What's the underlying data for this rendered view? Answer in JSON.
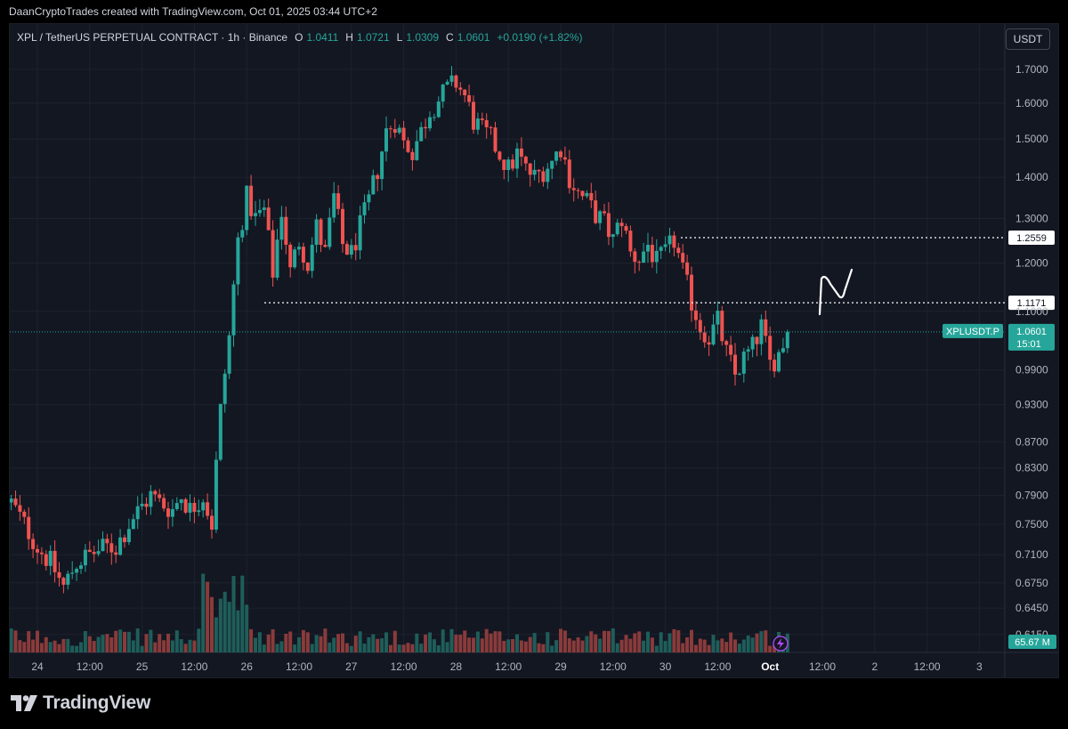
{
  "attribution": "DaanCryptoTrades created with TradingView.com, Oct 01, 2025 03:44 UTC+2",
  "header": {
    "symbol": "XPL / TetherUS PERPETUAL CONTRACT · 1h · Binance",
    "o_label": "O",
    "o_value": "1.0411",
    "h_label": "H",
    "h_value": "1.0721",
    "l_label": "L",
    "l_value": "1.0309",
    "c_label": "C",
    "c_value": "1.0601",
    "change": "+0.0190 (+1.82%)",
    "currency": "USDT"
  },
  "colors": {
    "up": "#26a69a",
    "down": "#ef5350",
    "background": "#131722",
    "grid": "#1e222d",
    "axis_text": "#b2b5be",
    "volume_up": "#1f5e5a",
    "volume_down": "#8a3b3b"
  },
  "chart_data": {
    "type": "candlestick",
    "symbol": "XPLUSDT.P",
    "interval": "1h",
    "y_scale": "log",
    "ylim": [
      0.61,
      1.73
    ],
    "y_ticks": [
      "1.7000",
      "1.6000",
      "1.5000",
      "1.4000",
      "1.3000",
      "1.2000",
      "1.1000",
      "0.9900",
      "0.9300",
      "0.8700",
      "0.8300",
      "0.7900",
      "0.7500",
      "0.7100",
      "0.6750",
      "0.6450",
      "0.6150"
    ],
    "x_labels": [
      "24",
      "12:00",
      "25",
      "12:00",
      "26",
      "12:00",
      "27",
      "12:00",
      "28",
      "12:00",
      "29",
      "12:00",
      "30",
      "12:00",
      "Oct",
      "12:00",
      "2",
      "12:00",
      "3"
    ],
    "x_label_hours": [
      0,
      12,
      24,
      36,
      48,
      60,
      72,
      84,
      96,
      108,
      120,
      132,
      144,
      156,
      168,
      180,
      192,
      204,
      216
    ],
    "last_price": {
      "label": "XPLUSDT.P",
      "price": "1.0601",
      "countdown": "15:01",
      "value": 1.0601
    },
    "volume_label": "65.67 M",
    "price_lines": [
      {
        "label": "1.2559",
        "value": 1.2559
      },
      {
        "label": "1.1171",
        "value": 1.1171
      }
    ],
    "anchors": [
      {
        "t": -6,
        "p": 0.78
      },
      {
        "t": 0,
        "p": 0.72
      },
      {
        "t": 3,
        "p": 0.7
      },
      {
        "t": 6,
        "p": 0.67
      },
      {
        "t": 9,
        "p": 0.7
      },
      {
        "t": 12,
        "p": 0.71
      },
      {
        "t": 16,
        "p": 0.72
      },
      {
        "t": 18,
        "p": 0.72
      },
      {
        "t": 22,
        "p": 0.76
      },
      {
        "t": 26,
        "p": 0.79
      },
      {
        "t": 28,
        "p": 0.78
      },
      {
        "t": 31,
        "p": 0.77
      },
      {
        "t": 33,
        "p": 0.79
      },
      {
        "t": 35,
        "p": 0.77
      },
      {
        "t": 38,
        "p": 0.79
      },
      {
        "t": 40,
        "p": 0.75
      },
      {
        "t": 42,
        "p": 0.92
      },
      {
        "t": 44,
        "p": 1.05
      },
      {
        "t": 46,
        "p": 1.25
      },
      {
        "t": 48,
        "p": 1.35
      },
      {
        "t": 50,
        "p": 1.3
      },
      {
        "t": 52,
        "p": 1.32
      },
      {
        "t": 54,
        "p": 1.18
      },
      {
        "t": 56,
        "p": 1.32
      },
      {
        "t": 58,
        "p": 1.18
      },
      {
        "t": 60,
        "p": 1.25
      },
      {
        "t": 62,
        "p": 1.2
      },
      {
        "t": 64,
        "p": 1.28
      },
      {
        "t": 66,
        "p": 1.22
      },
      {
        "t": 68,
        "p": 1.35
      },
      {
        "t": 70,
        "p": 1.24
      },
      {
        "t": 72,
        "p": 1.22
      },
      {
        "t": 74,
        "p": 1.28
      },
      {
        "t": 76,
        "p": 1.34
      },
      {
        "t": 78,
        "p": 1.42
      },
      {
        "t": 80,
        "p": 1.52
      },
      {
        "t": 82,
        "p": 1.55
      },
      {
        "t": 84,
        "p": 1.49
      },
      {
        "t": 86,
        "p": 1.47
      },
      {
        "t": 88,
        "p": 1.52
      },
      {
        "t": 90,
        "p": 1.58
      },
      {
        "t": 92,
        "p": 1.61
      },
      {
        "t": 94,
        "p": 1.64
      },
      {
        "t": 96,
        "p": 1.66
      },
      {
        "t": 98,
        "p": 1.62
      },
      {
        "t": 100,
        "p": 1.55
      },
      {
        "t": 102,
        "p": 1.52
      },
      {
        "t": 104,
        "p": 1.5
      },
      {
        "t": 106,
        "p": 1.46
      },
      {
        "t": 108,
        "p": 1.42
      },
      {
        "t": 110,
        "p": 1.46
      },
      {
        "t": 112,
        "p": 1.42
      },
      {
        "t": 114,
        "p": 1.4
      },
      {
        "t": 116,
        "p": 1.42
      },
      {
        "t": 118,
        "p": 1.44
      },
      {
        "t": 120,
        "p": 1.48
      },
      {
        "t": 122,
        "p": 1.4
      },
      {
        "t": 124,
        "p": 1.36
      },
      {
        "t": 126,
        "p": 1.34
      },
      {
        "t": 128,
        "p": 1.31
      },
      {
        "t": 130,
        "p": 1.29
      },
      {
        "t": 132,
        "p": 1.25
      },
      {
        "t": 134,
        "p": 1.3
      },
      {
        "t": 136,
        "p": 1.22
      },
      {
        "t": 138,
        "p": 1.21
      },
      {
        "t": 140,
        "p": 1.24
      },
      {
        "t": 142,
        "p": 1.2
      },
      {
        "t": 144,
        "p": 1.22
      },
      {
        "t": 146,
        "p": 1.25
      },
      {
        "t": 148,
        "p": 1.18
      },
      {
        "t": 150,
        "p": 1.12
      },
      {
        "t": 152,
        "p": 1.07
      },
      {
        "t": 154,
        "p": 1.05
      },
      {
        "t": 156,
        "p": 1.08
      },
      {
        "t": 158,
        "p": 1.02
      },
      {
        "t": 160,
        "p": 0.98
      },
      {
        "t": 162,
        "p": 1.01
      },
      {
        "t": 164,
        "p": 1.03
      },
      {
        "t": 166,
        "p": 1.07
      },
      {
        "t": 168,
        "p": 1.0
      },
      {
        "t": 170,
        "p": 1.02
      },
      {
        "t": 172,
        "p": 1.06
      }
    ]
  }
}
